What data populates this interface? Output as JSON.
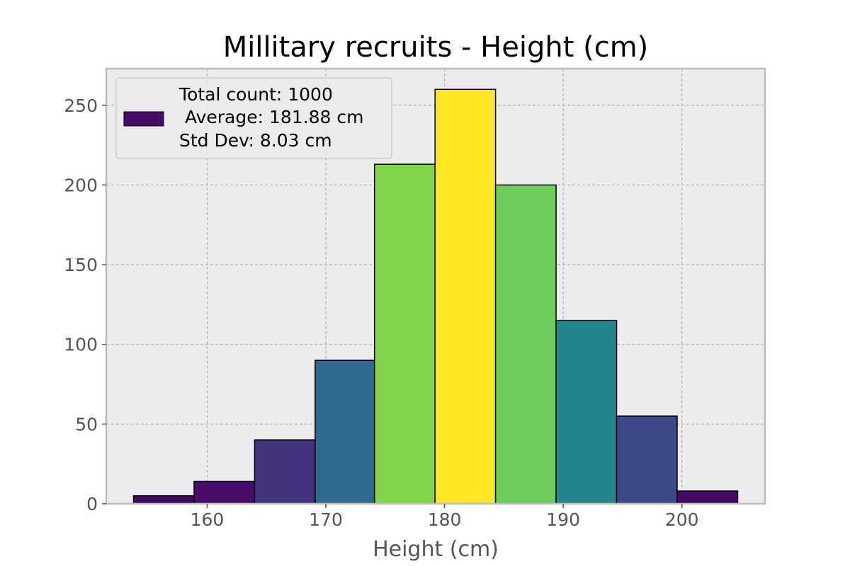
{
  "chart_data": {
    "type": "bar",
    "title": "Millitary recruits - Height (cm)",
    "xlabel": "Height (cm)",
    "ylabel": "",
    "xlim": [
      151.5,
      207
    ],
    "ylim": [
      0,
      273
    ],
    "xticks": [
      160,
      170,
      180,
      190,
      200
    ],
    "yticks": [
      0,
      50,
      100,
      150,
      200,
      250
    ],
    "grid": true,
    "legend_position": "top-left",
    "legend": {
      "color": "#4a0c6b",
      "lines": [
        "Total count: 1000",
        " Average: 181.88 cm",
        "Std Dev: 8.03 cm"
      ]
    },
    "bins": [
      {
        "x0": 153.8,
        "x1": 158.9,
        "value": 5,
        "color": "#440a68"
      },
      {
        "x0": 158.9,
        "x1": 164.0,
        "value": 14,
        "color": "#4a0c6b"
      },
      {
        "x0": 164.0,
        "x1": 169.1,
        "value": 40,
        "color": "#46337f"
      },
      {
        "x0": 169.1,
        "x1": 174.1,
        "value": 90,
        "color": "#306a8e"
      },
      {
        "x0": 174.1,
        "x1": 179.2,
        "value": 213,
        "color": "#84d44b"
      },
      {
        "x0": 179.2,
        "x1": 184.3,
        "value": 260,
        "color": "#fde725"
      },
      {
        "x0": 184.3,
        "x1": 189.4,
        "value": 200,
        "color": "#6ccd5a"
      },
      {
        "x0": 189.4,
        "x1": 194.5,
        "value": 115,
        "color": "#25848e"
      },
      {
        "x0": 194.5,
        "x1": 199.6,
        "value": 55,
        "color": "#3e4989"
      },
      {
        "x0": 199.6,
        "x1": 204.7,
        "value": 8,
        "color": "#440a68"
      }
    ],
    "colors": {
      "plot_background": "#ececef",
      "spine": "#bcbcbc",
      "bar_edge": "#000000"
    }
  }
}
